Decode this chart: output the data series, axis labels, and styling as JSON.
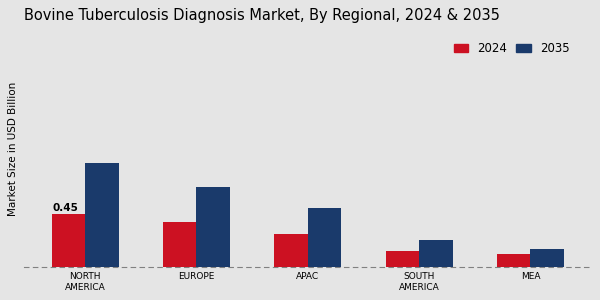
{
  "title": "Bovine Tuberculosis Diagnosis Market, By Regional, 2024 & 2035",
  "ylabel": "Market Size in USD Billion",
  "categories": [
    "NORTH\nAMERICA",
    "EUROPE",
    "APAC",
    "SOUTH\nAMERICA",
    "MEA"
  ],
  "values_2024": [
    0.45,
    0.38,
    0.28,
    0.13,
    0.11
  ],
  "values_2035": [
    0.88,
    0.68,
    0.5,
    0.23,
    0.15
  ],
  "color_2024": "#cc1122",
  "color_2035": "#1a3a6b",
  "bar_width": 0.3,
  "annotation_value": "0.45",
  "annotation_bar": 0,
  "background_color": "#e5e5e5",
  "title_fontsize": 10.5,
  "label_fontsize": 7.5,
  "tick_fontsize": 6.5,
  "legend_fontsize": 8.5,
  "ylabel_fontsize": 7.5,
  "ylim": [
    0,
    2.0
  ],
  "legend_labels": [
    "2024",
    "2035"
  ]
}
